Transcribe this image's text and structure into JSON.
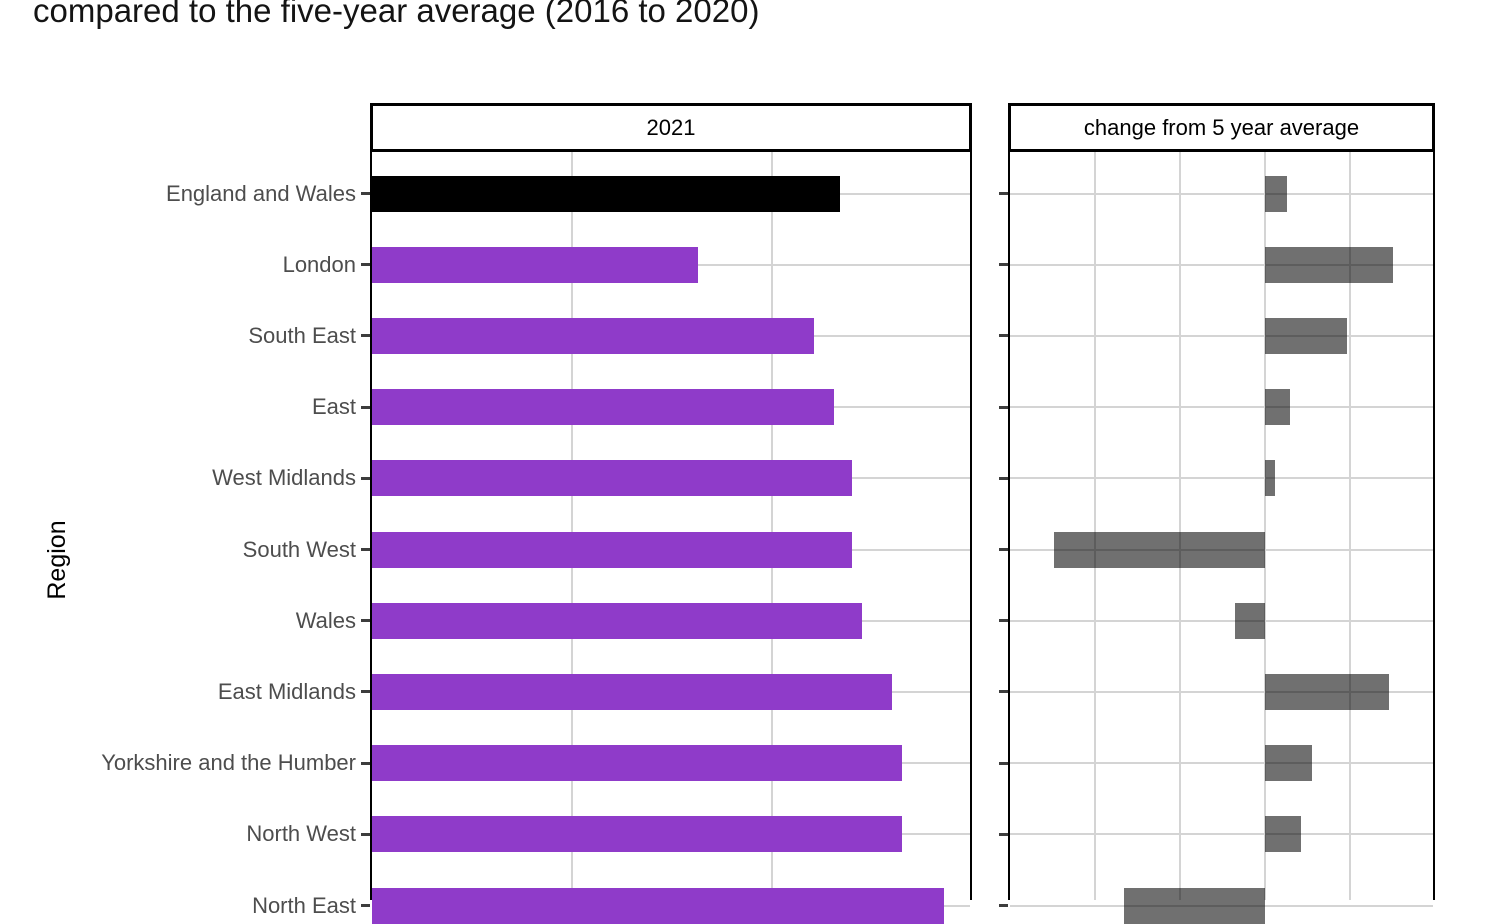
{
  "title": {
    "text": "compared to the five-year average (2016 to 2020)",
    "clipped_top": true
  },
  "y_axis_label": "Region",
  "colors": {
    "bar_purple": "#8f3bc9",
    "bar_highlight_black": "#000000",
    "bar_grey_translucent": "rgba(0,0,0,0.56)",
    "gridline": "#d4d4d4",
    "panel_border": "#000000",
    "axis_text": "#4d4d4d",
    "tick_mark": "#3d3d3d"
  },
  "chart_data": {
    "type": "bar",
    "orientation": "horizontal",
    "grid": true,
    "legend": false,
    "ylabel": "Region",
    "categories": [
      "England and Wales",
      "London",
      "South East",
      "East",
      "West Midlands",
      "South West",
      "Wales",
      "East Midlands",
      "Yorkshire and the Humber",
      "North West",
      "North East"
    ],
    "highlight_category": "England and Wales",
    "value_axis_note": "value-axis tick labels are cropped out of the screenshot; values estimated in gridline-spacing units (1 unit = one gridline interval)",
    "panels": [
      {
        "header": "2021",
        "axis_range_gridline_units": [
          0,
          3
        ],
        "values_gridline_units": [
          2.34,
          1.63,
          2.21,
          2.31,
          2.4,
          2.4,
          2.45,
          2.6,
          2.65,
          2.65,
          2.86
        ]
      },
      {
        "header": "change from 5 year average",
        "axis_range_gridline_units": [
          -3,
          2
        ],
        "zero_line_unit": 0,
        "values_gridline_units": [
          0.26,
          1.51,
          0.96,
          0.29,
          0.12,
          -2.48,
          -0.35,
          1.46,
          0.55,
          0.42,
          -1.66
        ]
      }
    ]
  }
}
